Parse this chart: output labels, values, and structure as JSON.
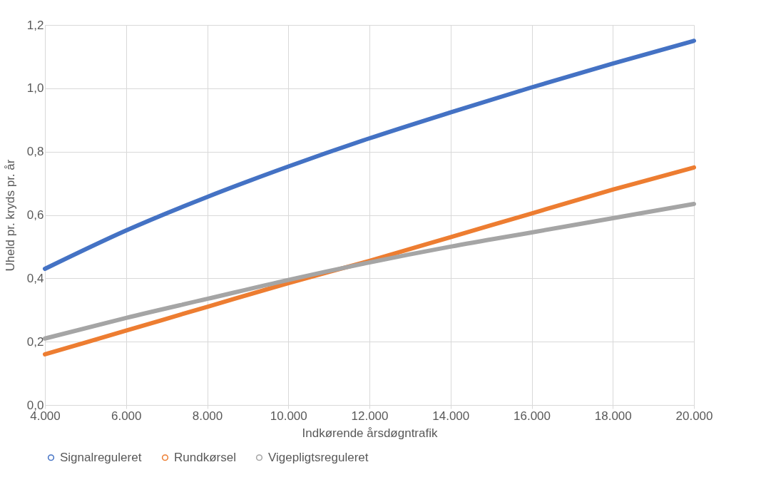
{
  "chart_data": {
    "type": "line",
    "xlabel": "Indkørende årsdøgntrafik",
    "ylabel": "Uheld pr. kryds pr. år",
    "x": [
      4000,
      6000,
      8000,
      10000,
      12000,
      14000,
      16000,
      18000,
      20000
    ],
    "series": [
      {
        "name": "Signalreguleret",
        "color": "#4472c4",
        "values": [
          0.43,
          0.551,
          0.657,
          0.753,
          0.842,
          0.924,
          1.003,
          1.078,
          1.15
        ]
      },
      {
        "name": "Rundkørsel",
        "color": "#ed7d31",
        "values": [
          0.16,
          0.235,
          0.31,
          0.385,
          0.455,
          0.53,
          0.605,
          0.68,
          0.75
        ]
      },
      {
        "name": "Vigepligtsreguleret",
        "color": "#a5a5a5",
        "values": [
          0.21,
          0.275,
          0.335,
          0.395,
          0.45,
          0.5,
          0.545,
          0.59,
          0.635
        ]
      }
    ],
    "xlim": [
      4000,
      20000
    ],
    "ylim": [
      0,
      1.2
    ],
    "xticks": [
      {
        "value": 4000,
        "label": "4.000"
      },
      {
        "value": 6000,
        "label": "6.000"
      },
      {
        "value": 8000,
        "label": "8.000"
      },
      {
        "value": 10000,
        "label": "10.000"
      },
      {
        "value": 12000,
        "label": "12.000"
      },
      {
        "value": 14000,
        "label": "14.000"
      },
      {
        "value": 16000,
        "label": "16.000"
      },
      {
        "value": 18000,
        "label": "18.000"
      },
      {
        "value": 20000,
        "label": "20.000"
      }
    ],
    "yticks": [
      {
        "value": 0,
        "label": "0,0"
      },
      {
        "value": 0.2,
        "label": "0,2"
      },
      {
        "value": 0.4,
        "label": "0,4"
      },
      {
        "value": 0.6,
        "label": "0,6"
      },
      {
        "value": 0.8,
        "label": "0,8"
      },
      {
        "value": 1.0,
        "label": "1,0"
      },
      {
        "value": 1.2,
        "label": "1,2"
      }
    ],
    "grid": true,
    "legend": "bottom",
    "line_style": "solid",
    "marker": "none"
  }
}
